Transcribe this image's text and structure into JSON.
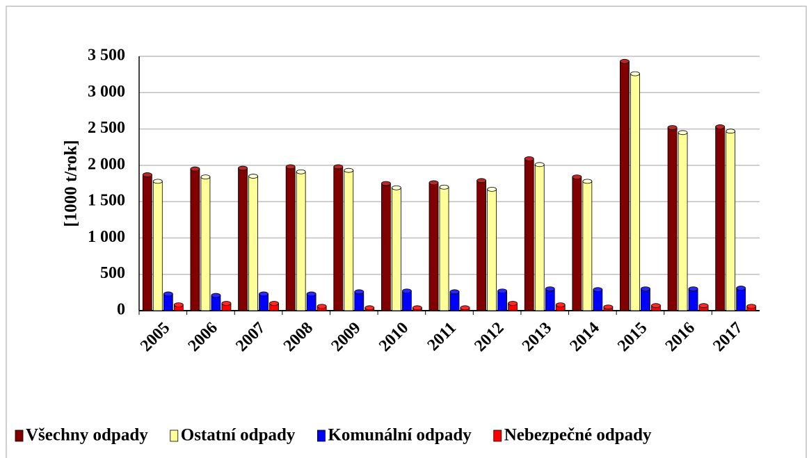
{
  "chart_data": {
    "type": "bar",
    "ylabel": "[1000 t/rok]",
    "categories": [
      "2005",
      "2006",
      "2007",
      "2008",
      "2009",
      "2010",
      "2011",
      "2012",
      "2013",
      "2014",
      "2015",
      "2016",
      "2017"
    ],
    "series": [
      {
        "name": "Všechny odpady",
        "color": "#800000",
        "values": [
          1870,
          1950,
          1960,
          1980,
          1980,
          1750,
          1760,
          1790,
          2090,
          1840,
          3430,
          2520,
          2530
        ]
      },
      {
        "name": "Ostatní odpady",
        "color": "#ffff99",
        "values": [
          1780,
          1840,
          1850,
          1910,
          1930,
          1690,
          1700,
          1670,
          2010,
          1780,
          3260,
          2450,
          2470
        ]
      },
      {
        "name": "Komunální odpady",
        "color": "#0000ff",
        "values": [
          230,
          210,
          230,
          230,
          260,
          270,
          260,
          270,
          300,
          290,
          300,
          300,
          310
        ]
      },
      {
        "name": "Nebezpečné odpady",
        "color": "#ff0000",
        "values": [
          80,
          100,
          100,
          60,
          40,
          40,
          40,
          100,
          80,
          50,
          70,
          70,
          60
        ]
      }
    ],
    "ylim": [
      0,
      3500
    ],
    "yticks": [
      0,
      500,
      {
        "value": 1000,
        "label": "1 000"
      },
      {
        "value": 1500,
        "label": "1 500"
      },
      {
        "value": 2000,
        "label": "2 000"
      },
      {
        "value": 2500,
        "label": "2 500"
      },
      {
        "value": 3000,
        "label": "3 000"
      },
      {
        "value": 3500,
        "label": "3 500"
      }
    ],
    "grid": true,
    "legend": "bottom"
  }
}
